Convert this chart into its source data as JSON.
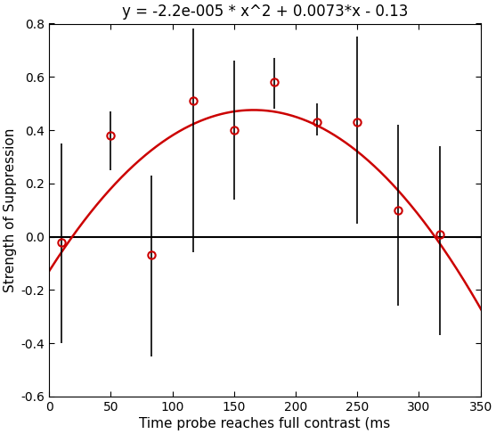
{
  "title": "y = -2.2e-005 * x^2 + 0.0073*x - 0.13",
  "xlabel": "Time probe reaches full contrast (ms",
  "ylabel": "Strength of Suppression",
  "xlim": [
    0,
    350
  ],
  "ylim": [
    -0.6,
    0.8
  ],
  "yticks": [
    -0.6,
    -0.4,
    -0.2,
    0.0,
    0.2,
    0.4,
    0.6,
    0.8
  ],
  "xticks": [
    0,
    50,
    100,
    150,
    200,
    250,
    300,
    350
  ],
  "x_data": [
    10,
    50,
    83,
    117,
    150,
    183,
    217,
    250,
    283,
    317
  ],
  "y_data": [
    -0.02,
    0.38,
    -0.07,
    0.51,
    0.4,
    0.58,
    0.43,
    0.43,
    0.1,
    0.01
  ],
  "y_err_upper": [
    0.37,
    0.09,
    0.3,
    0.27,
    0.26,
    0.09,
    0.07,
    0.32,
    0.32,
    0.33
  ],
  "y_err_lower": [
    0.38,
    0.13,
    0.38,
    0.57,
    0.26,
    0.1,
    0.05,
    0.38,
    0.36,
    0.38
  ],
  "poly_coeffs": [
    -2.2e-05,
    0.0073,
    -0.13
  ],
  "curve_color": "#cc0000",
  "marker_color": "#cc0000",
  "background_color": "#ffffff",
  "zero_line_color": "#000000",
  "title_fontsize": 12,
  "axis_label_fontsize": 11,
  "tick_fontsize": 10
}
